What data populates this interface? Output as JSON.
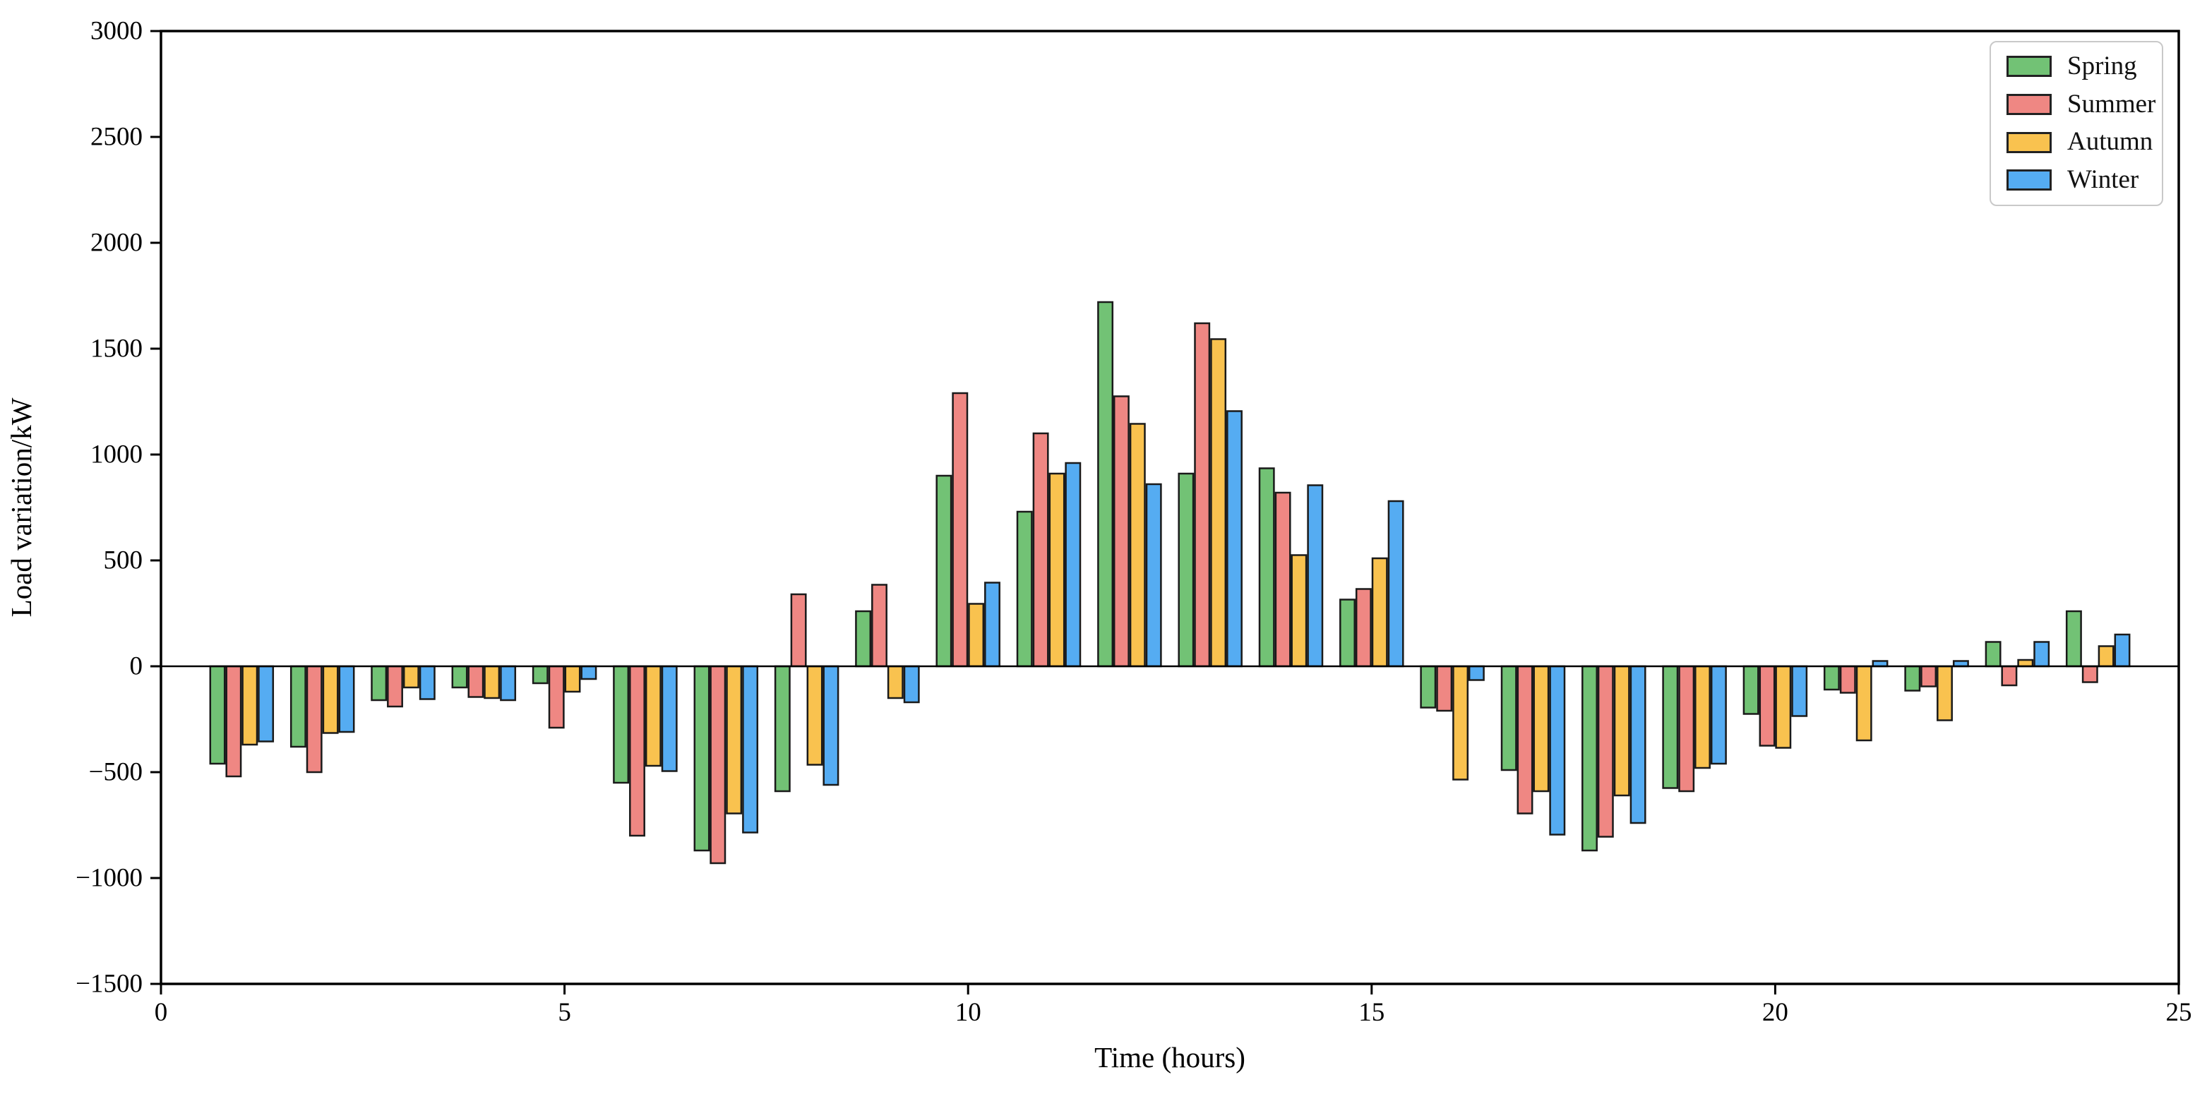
{
  "figure": {
    "xlabel": "Time (hours)",
    "ylabel": "Load variation/kW",
    "background": "#ffffff",
    "spine_color": "#000000"
  },
  "chart_data": {
    "type": "bar",
    "title": "",
    "xlabel": "Time (hours)",
    "ylabel": "Load variation/kW",
    "categories": [
      1,
      2,
      3,
      4,
      5,
      6,
      7,
      8,
      9,
      10,
      11,
      12,
      13,
      14,
      15,
      16,
      17,
      18,
      19,
      20,
      21,
      22,
      23,
      24
    ],
    "series": [
      {
        "name": "Spring",
        "color": "#72c275",
        "values": [
          -460,
          -380,
          -160,
          -100,
          -80,
          -550,
          -870,
          -590,
          260,
          900,
          730,
          1720,
          910,
          935,
          315,
          -195,
          -490,
          -870,
          -575,
          -225,
          -110,
          -115,
          115,
          260
        ]
      },
      {
        "name": "Summer",
        "color": "#ef8783",
        "values": [
          -520,
          -500,
          -190,
          -145,
          -290,
          -800,
          -930,
          340,
          385,
          1290,
          1100,
          1275,
          1620,
          820,
          365,
          -210,
          -695,
          -805,
          -590,
          -375,
          -125,
          -95,
          -90,
          -75
        ]
      },
      {
        "name": "Autumn",
        "color": "#f9c24f",
        "values": [
          -370,
          -315,
          -100,
          -150,
          -120,
          -470,
          -695,
          -465,
          -150,
          295,
          910,
          1145,
          1545,
          525,
          510,
          -535,
          -590,
          -610,
          -480,
          -385,
          -350,
          -255,
          30,
          95
        ]
      },
      {
        "name": "Winter",
        "color": "#55acf2",
        "values": [
          -355,
          -310,
          -155,
          -160,
          -60,
          -495,
          -785,
          -560,
          -170,
          395,
          960,
          860,
          1205,
          855,
          780,
          -65,
          -795,
          -740,
          -460,
          -235,
          25,
          25,
          115,
          150
        ]
      }
    ],
    "xlim": [
      0,
      25
    ],
    "ylim": [
      -1500,
      3000
    ],
    "xticks": [
      0,
      5,
      10,
      15,
      20,
      25
    ],
    "yticks": [
      3000,
      2500,
      2000,
      1500,
      1000,
      500,
      0,
      -500,
      -1000,
      -1500
    ],
    "grid": false,
    "legend_position": "upper right",
    "bar_edge_color": "#1a1a1a",
    "bar_group_width": 0.8
  }
}
